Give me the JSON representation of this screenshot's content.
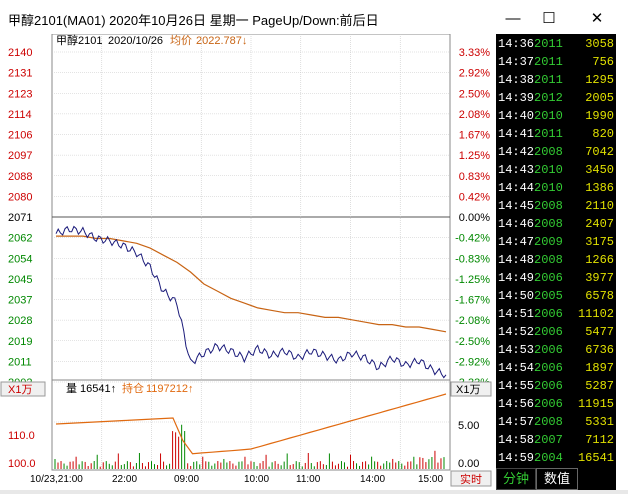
{
  "window": {
    "title": "甲醇2101(MA01) 2020年10月26日 星期一 PageUp/Down:前后日",
    "minimize_glyph": "—",
    "maximize_glyph": "☐",
    "close_glyph": "✕"
  },
  "chart_header": {
    "symbol": "甲醇2101",
    "date": "2020/10/26",
    "avg_label": "均价",
    "avg_value": "2022.787↓"
  },
  "volume_header": {
    "scale_left": "X1万",
    "scale_right": "X1万",
    "vol_label": "量",
    "vol_value": "16541↑",
    "oi_label": "持仓",
    "oi_value": "1197212↑"
  },
  "left_labels": [
    "2140",
    "2131",
    "2123",
    "2114",
    "2106",
    "2097",
    "2088",
    "2080",
    "2071",
    "2062",
    "2054",
    "2045",
    "2037",
    "2028",
    "2019",
    "2011",
    "2002"
  ],
  "right_labels": [
    "3.33%",
    "2.92%",
    "2.50%",
    "2.08%",
    "1.67%",
    "1.25%",
    "0.83%",
    "0.42%",
    "0.00%",
    "-0.42%",
    "-0.83%",
    "-1.25%",
    "-1.67%",
    "-2.08%",
    "-2.50%",
    "-2.92%",
    "-3.33%"
  ],
  "vol_left_labels": [
    "110.0",
    "100.0"
  ],
  "vol_right_labels": [
    "5.00",
    "0.00"
  ],
  "time_labels": [
    "10/23,21:00",
    "22:00",
    "09:00",
    "10:00",
    "11:00",
    "14:00",
    "15:00"
  ],
  "realtime_label": "实时",
  "chart_data": {
    "type": "line",
    "xlabel": "",
    "ylabel": "",
    "ylim": [
      2002,
      2140
    ],
    "reference_price": 2071,
    "series": [
      {
        "name": "均价",
        "values": [
          2063,
          2063,
          2063,
          2062,
          2062,
          2061,
          2060,
          2058,
          2055,
          2052,
          2048,
          2043,
          2040,
          2037,
          2035,
          2033,
          2032,
          2031,
          2031,
          2030,
          2029,
          2029,
          2028,
          2027,
          2026,
          2026,
          2025,
          2025,
          2024,
          2023
        ]
      },
      {
        "values": [
          2064,
          2066,
          2065,
          2062,
          2061,
          2059,
          2056,
          2050,
          2040,
          2035,
          2010,
          2014,
          2017,
          2015,
          2012,
          2016,
          2013,
          2015,
          2012,
          2015,
          2013,
          2011,
          2014,
          2012,
          2008,
          2012,
          2009,
          2011,
          2007,
          2005
        ]
      }
    ]
  },
  "tick_rows": [
    {
      "time": "14:36",
      "price": "2011",
      "vol": "3058"
    },
    {
      "time": "14:37",
      "price": "2011",
      "vol": "756"
    },
    {
      "time": "14:38",
      "price": "2011",
      "vol": "1295"
    },
    {
      "time": "14:39",
      "price": "2012",
      "vol": "2005"
    },
    {
      "time": "14:40",
      "price": "2010",
      "vol": "1990"
    },
    {
      "time": "14:41",
      "price": "2011",
      "vol": "820"
    },
    {
      "time": "14:42",
      "price": "2008",
      "vol": "7042"
    },
    {
      "time": "14:43",
      "price": "2010",
      "vol": "3450"
    },
    {
      "time": "14:44",
      "price": "2010",
      "vol": "1386"
    },
    {
      "time": "14:45",
      "price": "2008",
      "vol": "2110"
    },
    {
      "time": "14:46",
      "price": "2008",
      "vol": "2407"
    },
    {
      "time": "14:47",
      "price": "2009",
      "vol": "3175"
    },
    {
      "time": "14:48",
      "price": "2008",
      "vol": "1266"
    },
    {
      "time": "14:49",
      "price": "2006",
      "vol": "3977"
    },
    {
      "time": "14:50",
      "price": "2005",
      "vol": "6578"
    },
    {
      "time": "14:51",
      "price": "2006",
      "vol": "11102"
    },
    {
      "time": "14:52",
      "price": "2006",
      "vol": "5477"
    },
    {
      "time": "14:53",
      "price": "2006",
      "vol": "6736"
    },
    {
      "time": "14:54",
      "price": "2006",
      "vol": "1897"
    },
    {
      "time": "14:55",
      "price": "2006",
      "vol": "5287"
    },
    {
      "time": "14:56",
      "price": "2006",
      "vol": "11915"
    },
    {
      "time": "14:57",
      "price": "2008",
      "vol": "5331"
    },
    {
      "time": "14:58",
      "price": "2007",
      "vol": "7112"
    },
    {
      "time": "14:59",
      "price": "2004",
      "vol": "16541"
    }
  ],
  "tabs": {
    "minute": "分钟",
    "values": "数值"
  },
  "colors": {
    "price_line": "#1a1a7a",
    "avg_line": "#c86414",
    "up": "#cc0000",
    "down": "#008800",
    "flat": "#000000",
    "oi_line": "#e06a10"
  }
}
